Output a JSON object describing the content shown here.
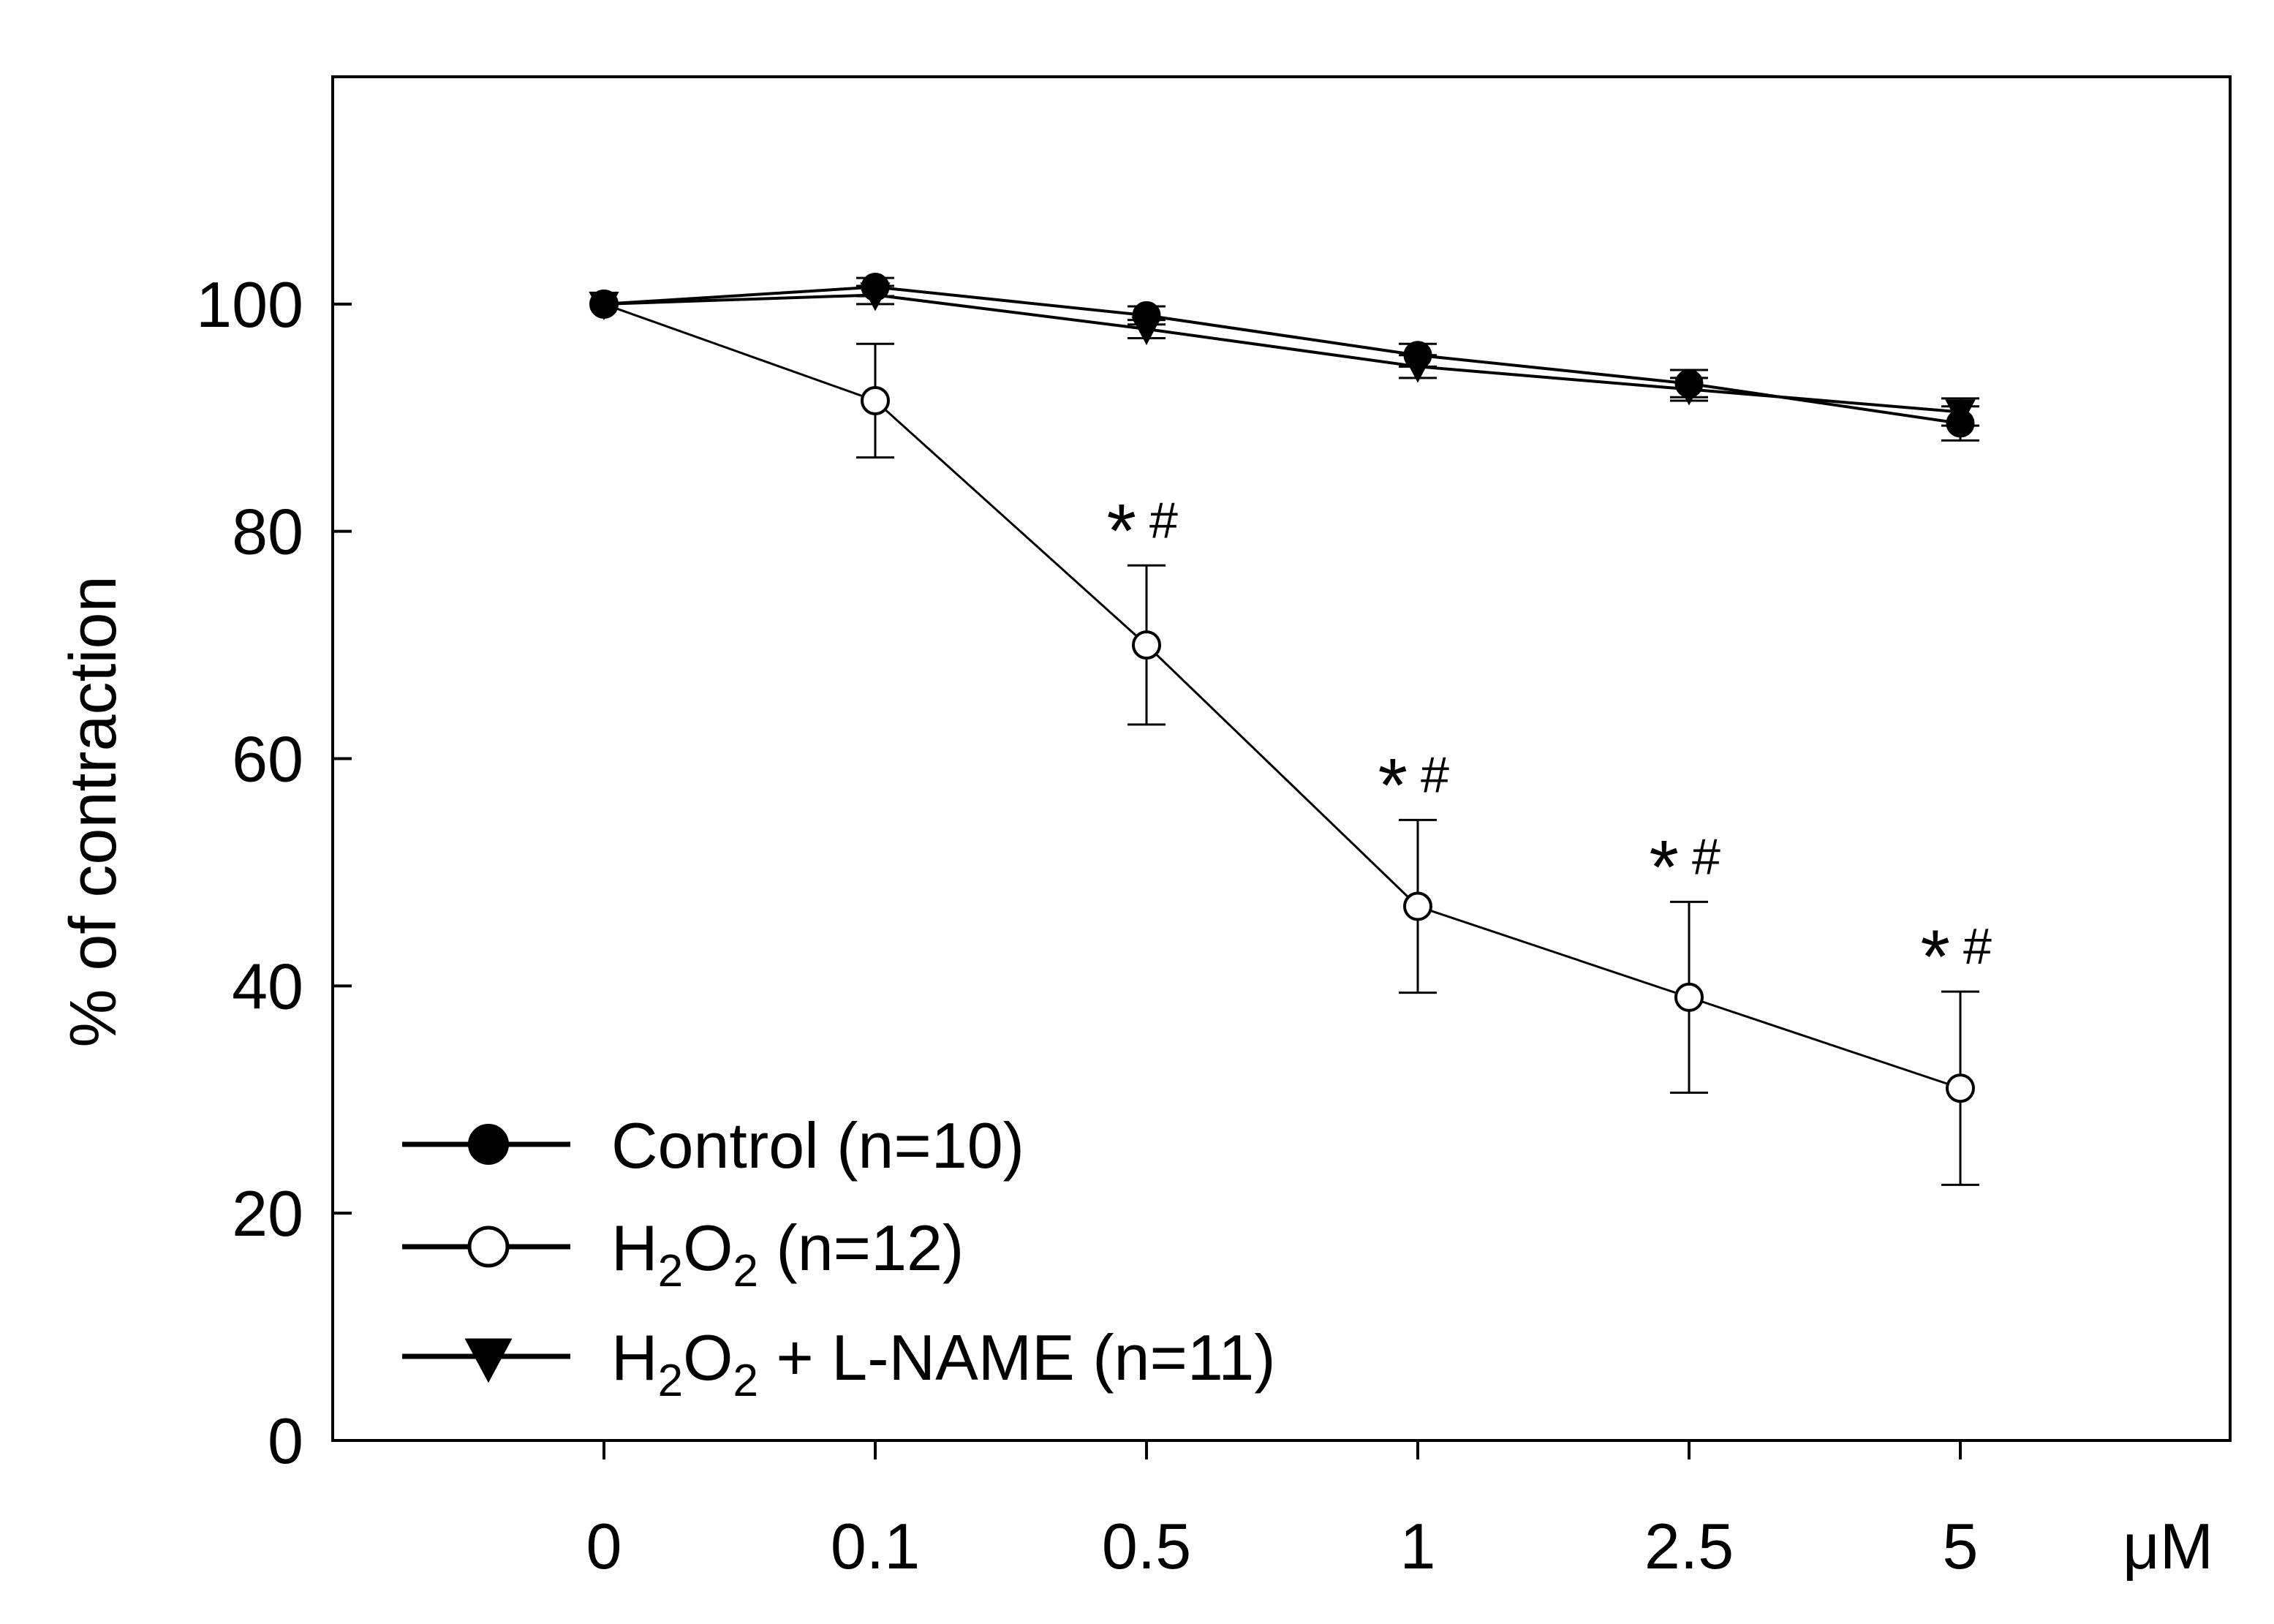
{
  "chart_data": {
    "type": "line",
    "title": "",
    "xlabel": "",
    "x_unit_label": "μM",
    "ylabel": "% of contraction",
    "categories": [
      "0",
      "0.1",
      "0.5",
      "1",
      "2.5",
      "5"
    ],
    "ylim": [
      0,
      120
    ],
    "yticks": [
      0,
      20,
      40,
      60,
      80,
      100
    ],
    "grid": false,
    "legend_position": "bottom-left",
    "series": [
      {
        "name": "Control (n=10)",
        "legend_parts": {
          "base": "Control (n=10)"
        },
        "marker": "filled-circle",
        "values": [
          100,
          101.5,
          99,
          95.5,
          93,
          89.5
        ],
        "errors": [
          0,
          0.8,
          0.8,
          1.0,
          1.2,
          1.5
        ]
      },
      {
        "name": "H2O2 (n=12)",
        "legend_parts": {
          "a": "H",
          "sub1": "2",
          "b": "O",
          "sub2": "2",
          "c": " (n=12)"
        },
        "marker": "open-circle",
        "values": [
          100,
          91.5,
          70,
          47,
          39,
          31
        ],
        "errors": [
          0,
          5,
          7,
          7.6,
          8.4,
          8.5
        ]
      },
      {
        "name": "H2O2 + L-NAME (n=11)",
        "legend_parts": {
          "a": "H",
          "sub1": "2",
          "b": "O",
          "sub2": "2",
          "c": " + L-NAME (n=11)"
        },
        "marker": "filled-triangle-down",
        "values": [
          100,
          100.8,
          97.8,
          94.5,
          92.5,
          90.5
        ],
        "errors": [
          0,
          0.8,
          0.8,
          1.0,
          1.0,
          1.2
        ]
      }
    ],
    "annotations": [
      {
        "category": "0.5",
        "star": "*",
        "hash": "#"
      },
      {
        "category": "1",
        "star": "*",
        "hash": "#"
      },
      {
        "category": "2.5",
        "star": "*",
        "hash": "#"
      },
      {
        "category": "5",
        "star": "*",
        "hash": "#"
      }
    ]
  }
}
